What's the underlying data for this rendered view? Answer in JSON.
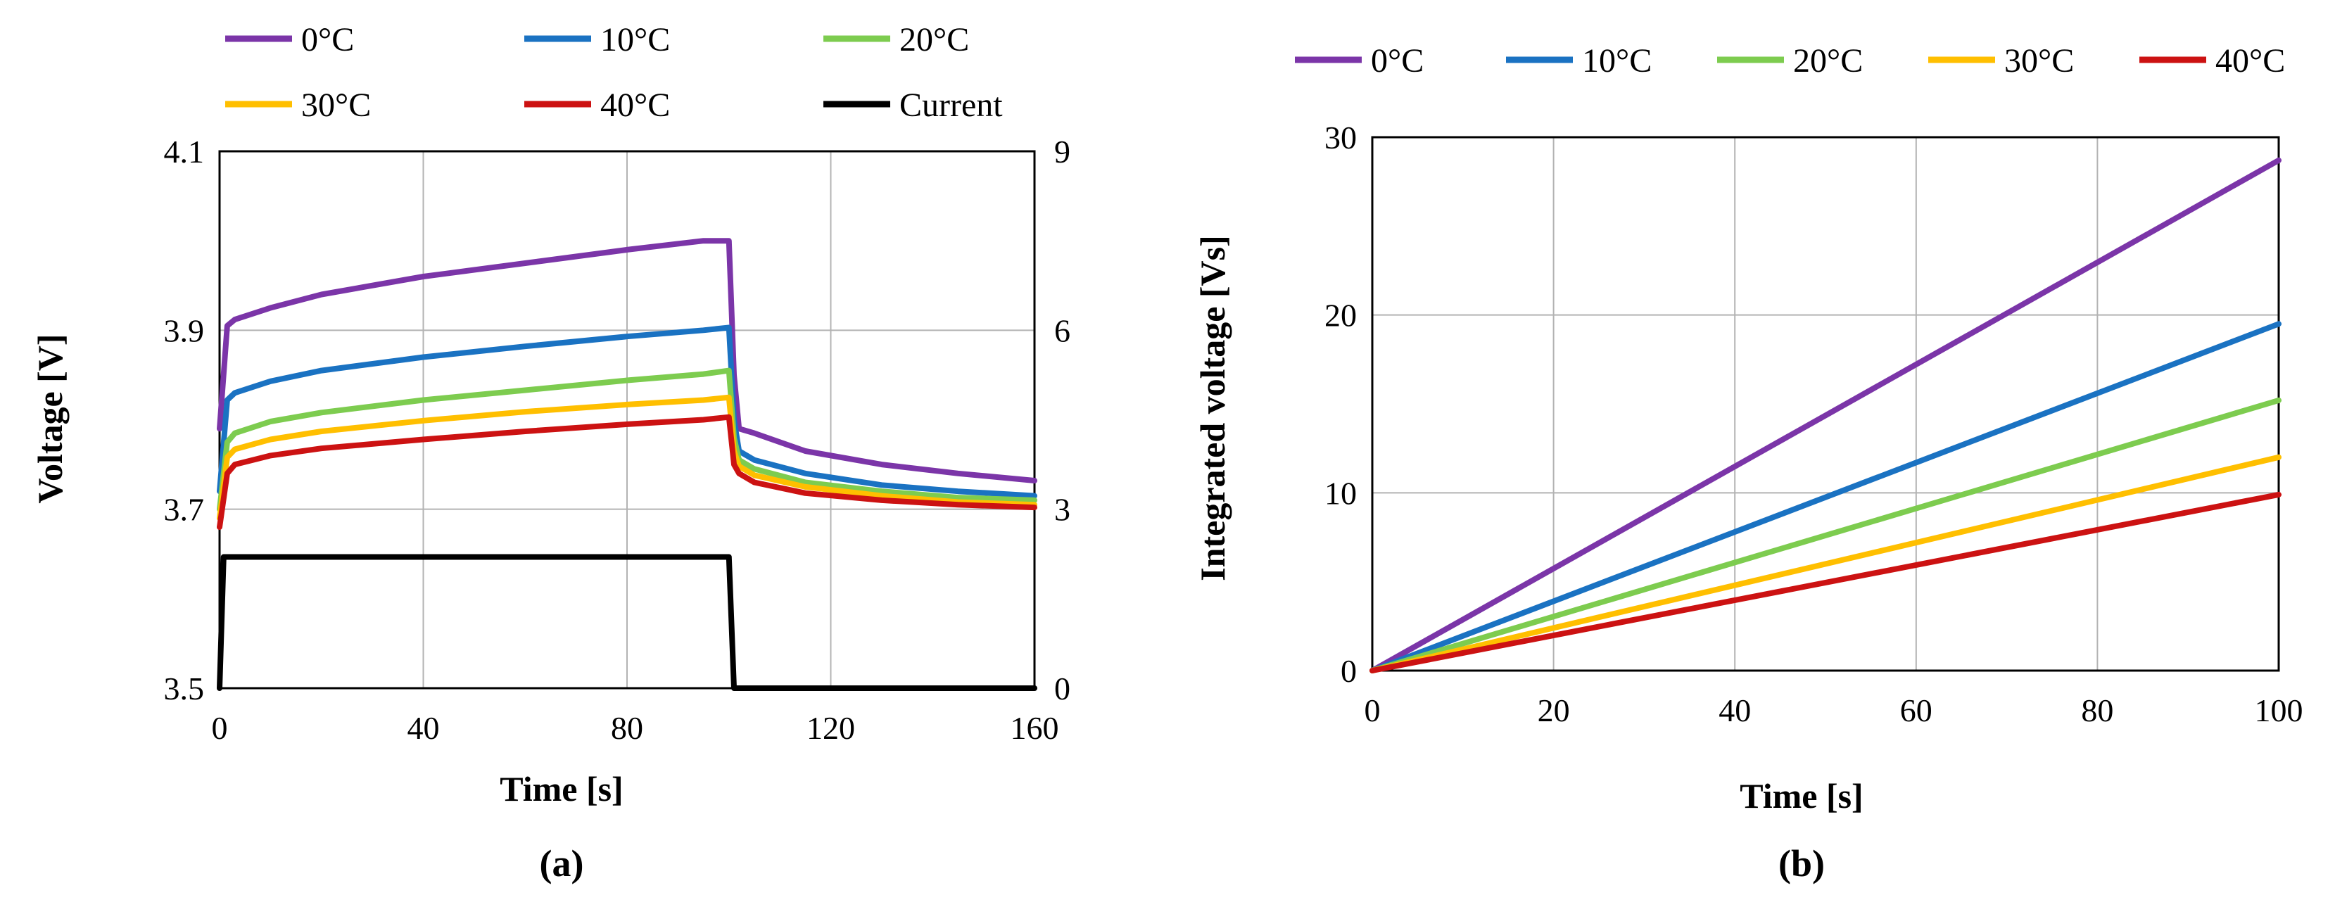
{
  "colors": {
    "0C": "#7b35a8",
    "10C": "#1a72c2",
    "20C": "#7dcc4f",
    "30C": "#ffbf00",
    "40C": "#cc1212",
    "current": "#000000",
    "grid": "#b3b3b3"
  },
  "chart_data": [
    {
      "type": "line",
      "caption": "(a)",
      "title": "",
      "xlabel": "Time [s]",
      "ylabel": "Voltage [V]",
      "y2label": "",
      "xlim": [
        0,
        160
      ],
      "ylim": [
        3.5,
        4.1
      ],
      "y2lim": [
        0,
        9
      ],
      "xticks": [
        "0",
        "40",
        "80",
        "120",
        "160"
      ],
      "yticks": [
        "3.5",
        "3.7",
        "3.9",
        "4.1"
      ],
      "y2ticks": [
        "0",
        "3",
        "6",
        "9"
      ],
      "grid": true,
      "legend": [
        "0°C",
        "10°C",
        "20°C",
        "30°C",
        "40°C",
        "Current"
      ],
      "series": [
        {
          "name": "0°C",
          "color_key": "0C",
          "axis": "left",
          "x": [
            0,
            1.5,
            3,
            10,
            20,
            40,
            60,
            80,
            95,
            100,
            101,
            102,
            105,
            115,
            130,
            145,
            160
          ],
          "y": [
            3.79,
            3.905,
            3.912,
            3.925,
            3.94,
            3.96,
            3.975,
            3.99,
            4.0,
            4.0,
            3.85,
            3.79,
            3.785,
            3.765,
            3.75,
            3.74,
            3.732
          ]
        },
        {
          "name": "10°C",
          "color_key": "10C",
          "axis": "left",
          "x": [
            0,
            1.5,
            3,
            10,
            20,
            40,
            60,
            80,
            95,
            100,
            101,
            102,
            105,
            115,
            130,
            145,
            160
          ],
          "y": [
            3.72,
            3.822,
            3.83,
            3.843,
            3.855,
            3.87,
            3.882,
            3.893,
            3.9,
            3.903,
            3.8,
            3.765,
            3.755,
            3.74,
            3.727,
            3.72,
            3.715
          ]
        },
        {
          "name": "20°C",
          "color_key": "20C",
          "axis": "left",
          "x": [
            0,
            1.5,
            3,
            10,
            20,
            40,
            60,
            80,
            95,
            100,
            101,
            102,
            105,
            115,
            130,
            145,
            160
          ],
          "y": [
            3.7,
            3.775,
            3.785,
            3.798,
            3.808,
            3.822,
            3.833,
            3.844,
            3.851,
            3.855,
            3.78,
            3.755,
            3.745,
            3.73,
            3.72,
            3.713,
            3.71
          ]
        },
        {
          "name": "30°C",
          "color_key": "30C",
          "axis": "left",
          "x": [
            0,
            1.5,
            3,
            10,
            20,
            40,
            60,
            80,
            95,
            100,
            101,
            102,
            105,
            115,
            130,
            145,
            160
          ],
          "y": [
            3.69,
            3.758,
            3.767,
            3.778,
            3.787,
            3.799,
            3.809,
            3.817,
            3.822,
            3.825,
            3.765,
            3.748,
            3.738,
            3.725,
            3.715,
            3.708,
            3.705
          ]
        },
        {
          "name": "40°C",
          "color_key": "40C",
          "axis": "left",
          "x": [
            0,
            1.5,
            3,
            10,
            20,
            40,
            60,
            80,
            95,
            100,
            101,
            102,
            105,
            115,
            130,
            145,
            160
          ],
          "y": [
            3.68,
            3.74,
            3.75,
            3.76,
            3.768,
            3.778,
            3.787,
            3.795,
            3.8,
            3.803,
            3.75,
            3.74,
            3.73,
            3.718,
            3.71,
            3.705,
            3.702
          ]
        },
        {
          "name": "Current",
          "color_key": "current",
          "axis": "right",
          "x": [
            0,
            0.8,
            100,
            101,
            160
          ],
          "y": [
            0,
            2.2,
            2.2,
            0,
            0
          ]
        }
      ]
    },
    {
      "type": "line",
      "caption": "(b)",
      "title": "",
      "xlabel": "Time [s]",
      "ylabel": "Integrated voltage [Vs]",
      "xlim": [
        0,
        100
      ],
      "ylim": [
        0,
        30
      ],
      "xticks": [
        "0",
        "20",
        "40",
        "60",
        "80",
        "100"
      ],
      "yticks": [
        "0",
        "10",
        "20",
        "30"
      ],
      "grid": true,
      "legend": [
        "0°C",
        "10°C",
        "20°C",
        "30°C",
        "40°C"
      ],
      "series": [
        {
          "name": "0°C",
          "color_key": "0C",
          "x": [
            0,
            100
          ],
          "y": [
            0,
            28.7
          ]
        },
        {
          "name": "10°C",
          "color_key": "10C",
          "x": [
            0,
            100
          ],
          "y": [
            0,
            19.5
          ]
        },
        {
          "name": "20°C",
          "color_key": "20C",
          "x": [
            0,
            100
          ],
          "y": [
            0,
            15.2
          ]
        },
        {
          "name": "30°C",
          "color_key": "30C",
          "x": [
            0,
            100
          ],
          "y": [
            0,
            12.0
          ]
        },
        {
          "name": "40°C",
          "color_key": "40C",
          "x": [
            0,
            100
          ],
          "y": [
            0,
            9.9
          ]
        }
      ]
    }
  ]
}
